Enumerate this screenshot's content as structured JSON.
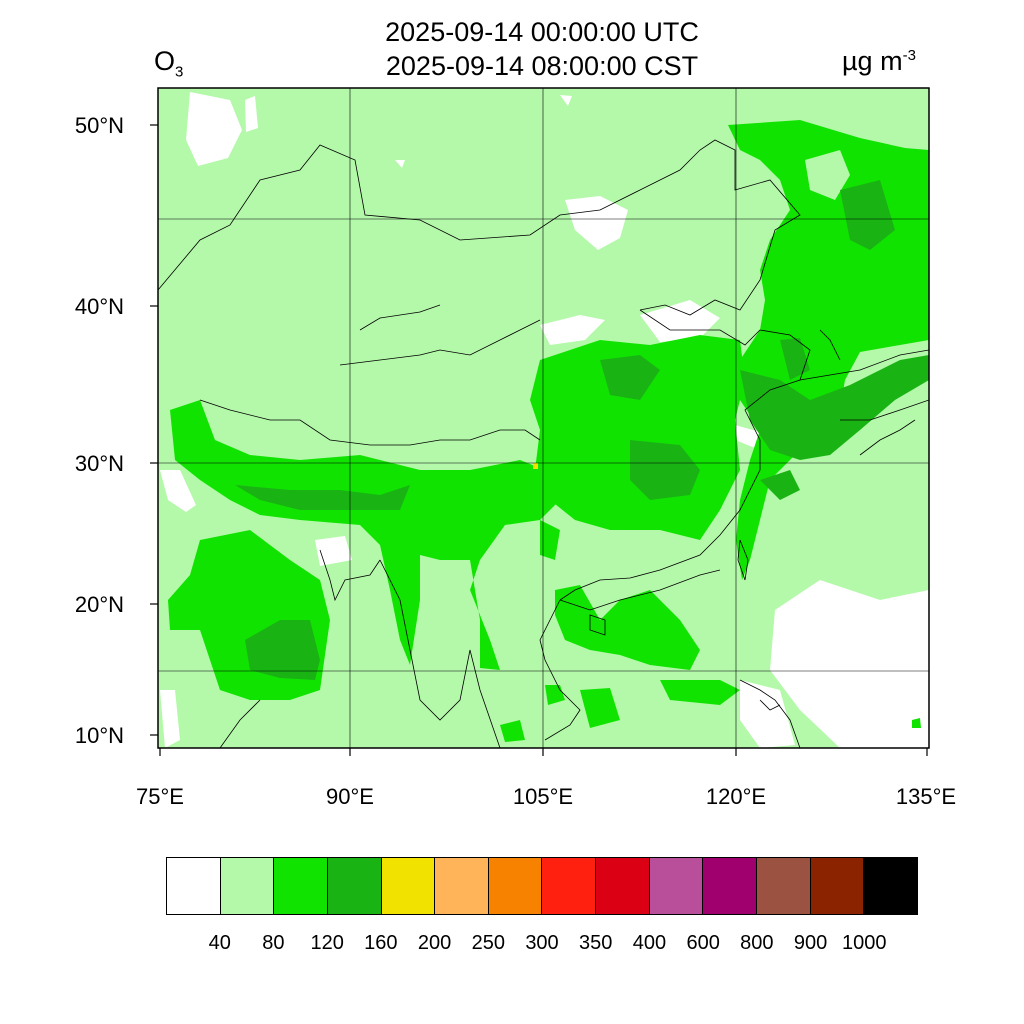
{
  "title": {
    "utc": "2025-09-14 00:00:00 UTC",
    "cst": "2025-09-14 08:00:00 CST"
  },
  "species": {
    "main": "O",
    "sub": "3"
  },
  "units": {
    "main": "µg m",
    "sup": "-3"
  },
  "lat_labels": [
    "50°N",
    "40°N",
    "30°N",
    "20°N",
    "10°N"
  ],
  "lon_labels": [
    "75°E",
    "90°E",
    "105°E",
    "120°E",
    "135°E"
  ],
  "colorbar": {
    "colors": [
      "#ffffff",
      "#b4f9aa",
      "#11e300",
      "#19b414",
      "#f2e200",
      "#ffb45a",
      "#f78200",
      "#ff2010",
      "#dc0014",
      "#b94f9b",
      "#a0006e",
      "#9b5241",
      "#8c2300",
      "#000000"
    ],
    "labels": [
      "40",
      "80",
      "120",
      "160",
      "200",
      "250",
      "300",
      "350",
      "400",
      "600",
      "800",
      "900",
      "1000"
    ]
  },
  "map": {
    "type": "filled contour map",
    "variable": "O3",
    "region": "East & South Asia, 75°E–135°E, 9°N–53°N",
    "background_level_color": "#b4f9aa",
    "grid": true
  }
}
